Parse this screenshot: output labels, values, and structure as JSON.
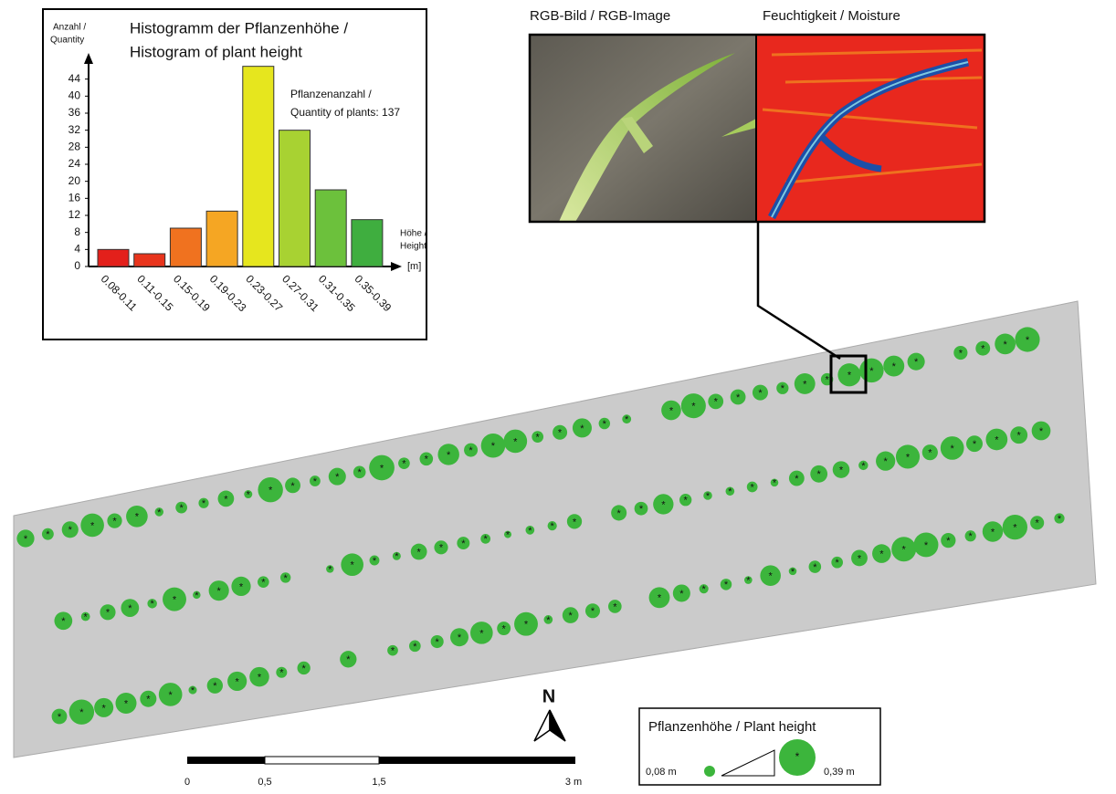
{
  "chart_data": {
    "type": "bar",
    "title_lines": [
      "Histogramm der Pflanzenhöhe /",
      "Histogram of plant height"
    ],
    "y_label_lines": [
      "Anzahl /",
      "Quantity"
    ],
    "x_label_lines": [
      "Höhe /",
      "Height",
      "[m]"
    ],
    "annotation_lines": [
      "Pflanzenanzahl /",
      "Quantity of plants:  137"
    ],
    "categories": [
      "0.08-0.11",
      "0.11-0.15",
      "0.15-0.19",
      "0.19-0.23",
      "0.23-0.27",
      "0.27-0.31",
      "0.31-0.35",
      "0.35-0.39"
    ],
    "values": [
      4,
      3,
      9,
      13,
      47,
      32,
      18,
      11
    ],
    "colors": [
      "#e3201b",
      "#e8341c",
      "#f0721f",
      "#f5a623",
      "#e6e61e",
      "#a8d232",
      "#6cc13c",
      "#3fae3f"
    ],
    "ylim": [
      0,
      48
    ],
    "yticks": [
      0,
      4,
      8,
      12,
      16,
      20,
      24,
      28,
      32,
      36,
      40,
      44
    ]
  },
  "images": {
    "rgb_label": "RGB-Bild / RGB-Image",
    "moisture_label": "Feuchtigkeit / Moisture"
  },
  "legend": {
    "title": "Pflanzenhöhe / Plant height",
    "min": "0,08 m",
    "max": "0,39 m"
  },
  "north": "N",
  "scale_bar": {
    "labels": [
      "0",
      "0,5",
      "1,5",
      "3 m"
    ]
  }
}
